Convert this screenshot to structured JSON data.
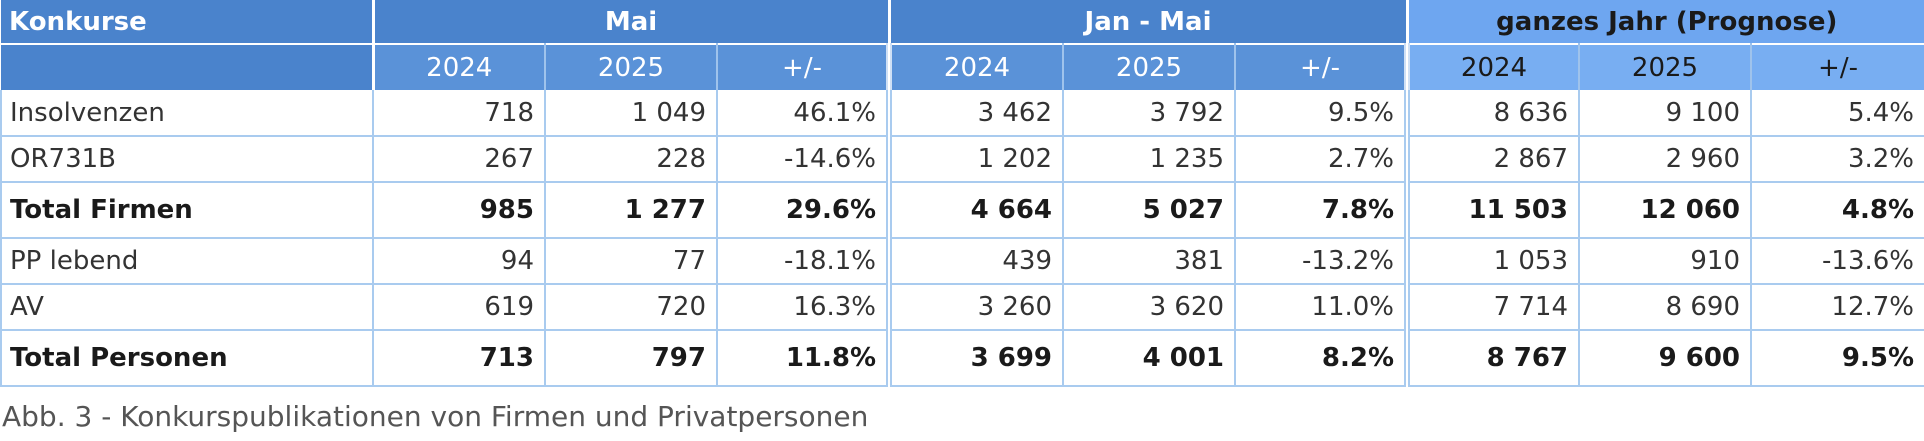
{
  "table": {
    "corner_label": "Konkurse",
    "groups": [
      "Mai",
      "Jan - Mai",
      "ganzes Jahr (Prognose)"
    ],
    "subheaders": [
      "2024",
      "2025",
      "+/-",
      "2024",
      "2025",
      "+/-",
      "2024",
      "2025",
      "+/-"
    ],
    "rows": [
      {
        "label": "Insolvenzen",
        "bold": false,
        "cells": [
          "718",
          "1 049",
          "46.1%",
          "3 462",
          "3 792",
          "9.5%",
          "8 636",
          "9 100",
          "5.4%"
        ]
      },
      {
        "label": "OR731B",
        "bold": false,
        "cells": [
          "267",
          "228",
          "-14.6%",
          "1 202",
          "1 235",
          "2.7%",
          "2 867",
          "2 960",
          "3.2%"
        ]
      },
      {
        "label": "Total Firmen",
        "bold": true,
        "cells": [
          "985",
          "1 277",
          "29.6%",
          "4 664",
          "5 027",
          "7.8%",
          "11 503",
          "12 060",
          "4.8%"
        ]
      },
      {
        "label": "PP lebend",
        "bold": false,
        "cells": [
          "94",
          "77",
          "-18.1%",
          "439",
          "381",
          "-13.2%",
          "1 053",
          "910",
          "-13.6%"
        ]
      },
      {
        "label": "AV",
        "bold": false,
        "cells": [
          "619",
          "720",
          "16.3%",
          "3 260",
          "3 620",
          "11.0%",
          "7 714",
          "8 690",
          "12.7%"
        ]
      },
      {
        "label": "Total Personen",
        "bold": true,
        "cells": [
          "713",
          "797",
          "11.8%",
          "3 699",
          "4 001",
          "8.2%",
          "8 767",
          "9 600",
          "9.5%"
        ]
      }
    ]
  },
  "caption": "Abb. 3 - Konkurspublikationen von Firmen und Privatpersonen"
}
